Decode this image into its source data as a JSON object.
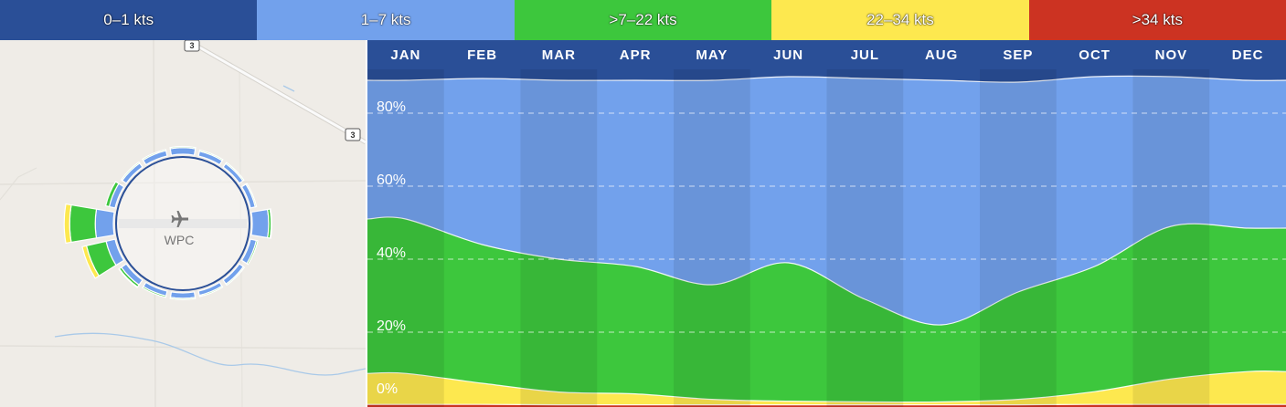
{
  "legend": {
    "items": [
      {
        "label": "0–1 kts",
        "color": "#2a4f97"
      },
      {
        "label": "1–7 kts",
        "color": "#72a1ec"
      },
      {
        "label": ">7–22 kts",
        "color": "#3dc73d"
      },
      {
        "label": "22–34 kts",
        "color": "#fde84f"
      },
      {
        "label": ">34 kts",
        "color": "#cc3322"
      }
    ]
  },
  "map": {
    "airport_code": "WPC",
    "airport_icon": "airplane-icon",
    "road_shields": [
      "3",
      "3"
    ]
  },
  "chart_data": {
    "type": "area",
    "stacked": true,
    "categories": [
      "JAN",
      "FEB",
      "MAR",
      "APR",
      "MAY",
      "JUN",
      "JUL",
      "AUG",
      "SEP",
      "OCT",
      "NOV",
      "DEC"
    ],
    "series": [
      {
        "name": ">34 kts",
        "color": "#cc3322",
        "values": [
          0.2,
          0.2,
          0.1,
          0.1,
          0.1,
          0.1,
          0.1,
          0.1,
          0.1,
          0.2,
          0.2,
          0.2
        ]
      },
      {
        "name": "22–34 kts",
        "color": "#fde84f",
        "values": [
          8.5,
          5.8,
          3.5,
          3.0,
          1.5,
          1.0,
          0.8,
          0.8,
          1.5,
          3.5,
          7.0,
          9.0
        ]
      },
      {
        "name": "7–22 kts",
        "color": "#3dc73d",
        "values": [
          42.3,
          38.0,
          36.4,
          34.9,
          31.4,
          37.9,
          28.1,
          21.1,
          29.4,
          34.3,
          41.8,
          39.3
        ]
      },
      {
        "name": "1–7 kts",
        "color": "#72a1ec",
        "values": [
          38.0,
          45.5,
          49.0,
          51.0,
          56.0,
          51.0,
          60.5,
          67.0,
          57.5,
          52.0,
          41.0,
          40.5
        ]
      },
      {
        "name": "0–1 kts",
        "color": "#2a4f97",
        "values": [
          11.0,
          10.5,
          11.0,
          11.0,
          11.0,
          10.0,
          10.5,
          11.0,
          11.5,
          10.0,
          10.0,
          11.0
        ]
      }
    ],
    "yticks": [
      "0%",
      "20%",
      "40%",
      "60%",
      "80%"
    ],
    "ylim": [
      0,
      100
    ],
    "grid": true
  },
  "wind_rose": {
    "directions_deg": [
      0,
      22.5,
      45,
      67.5,
      90,
      112.5,
      135,
      157.5,
      180,
      202.5,
      225,
      247.5,
      270,
      292.5,
      315,
      337.5
    ],
    "light": [
      7,
      4,
      3,
      4,
      25,
      6,
      4,
      3,
      5,
      4,
      6,
      12,
      28,
      6,
      4,
      5
    ],
    "moderate": [
      0.5,
      0.5,
      0.5,
      0.5,
      3,
      1,
      0.5,
      0.5,
      0.5,
      1,
      3,
      35,
      45,
      5,
      0.5,
      0.5
    ],
    "strong": [
      0,
      0,
      0,
      0,
      0.5,
      0,
      0,
      0,
      0,
      0,
      0.5,
      4,
      5,
      0,
      0,
      0
    ]
  },
  "colors": {
    "calm": "#2a4f97",
    "light": "#72a1ec",
    "moderate": "#3dc73d",
    "strong": "#fde84f",
    "gale": "#cc3322",
    "map_bg": "#efece7"
  }
}
